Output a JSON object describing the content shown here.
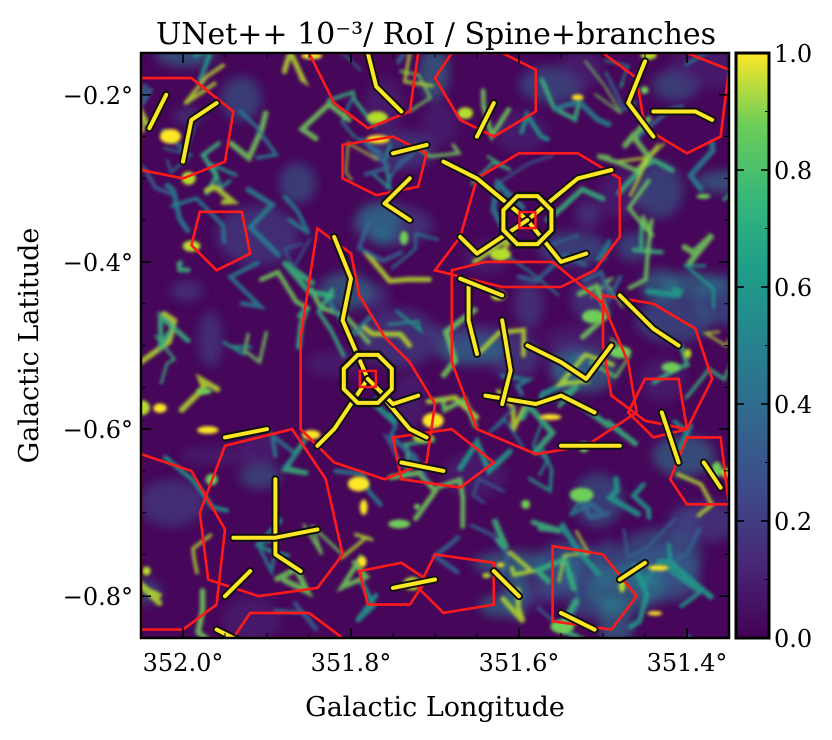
{
  "chart_data": {
    "type": "heatmap",
    "title": "UNet++ 10⁻³/ RoI / Spine+branches",
    "xlabel": "Galactic Longitude",
    "ylabel": "Galactic Latitude",
    "xlim": [
      352.05,
      351.35
    ],
    "ylim": [
      -0.85,
      -0.15
    ],
    "x_ticks": [
      {
        "value": 352.0,
        "label": "352.0°"
      },
      {
        "value": 351.8,
        "label": "351.8°"
      },
      {
        "value": 351.6,
        "label": "351.6°"
      },
      {
        "value": 351.4,
        "label": "351.4°"
      }
    ],
    "y_ticks": [
      {
        "value": -0.2,
        "label": "−0.2°"
      },
      {
        "value": -0.4,
        "label": "−0.4°"
      },
      {
        "value": -0.6,
        "label": "−0.6°"
      },
      {
        "value": -0.8,
        "label": "−0.8°"
      }
    ],
    "colorbar": {
      "cmap": "viridis",
      "range": [
        0.0,
        1.0
      ],
      "ticks": [
        {
          "value": 0.0,
          "label": "0.0"
        },
        {
          "value": 0.2,
          "label": "0.2"
        },
        {
          "value": 0.4,
          "label": "0.4"
        },
        {
          "value": 0.6,
          "label": "0.6"
        },
        {
          "value": 0.8,
          "label": "0.8"
        },
        {
          "value": 1.0,
          "label": "1.0"
        }
      ]
    },
    "overlay_colors": {
      "roi_contours": "#ff1a1a",
      "spine_outline": "#111111",
      "spine_fill": "#fde725"
    },
    "hubs": [
      {
        "l": 351.59,
        "b": -0.35
      },
      {
        "l": 351.78,
        "b": -0.54
      }
    ],
    "spines": [
      [
        [
          351.59,
          -0.35
        ],
        [
          351.65,
          -0.3
        ],
        [
          351.69,
          -0.28
        ]
      ],
      [
        [
          351.59,
          -0.35
        ],
        [
          351.53,
          -0.3
        ],
        [
          351.49,
          -0.29
        ]
      ],
      [
        [
          351.59,
          -0.35
        ],
        [
          351.55,
          -0.4
        ],
        [
          351.52,
          -0.39
        ]
      ],
      [
        [
          351.59,
          -0.35
        ],
        [
          351.65,
          -0.39
        ],
        [
          351.67,
          -0.37
        ]
      ],
      [
        [
          351.78,
          -0.54
        ],
        [
          351.81,
          -0.47
        ],
        [
          351.8,
          -0.42
        ],
        [
          351.82,
          -0.37
        ]
      ],
      [
        [
          351.78,
          -0.54
        ],
        [
          351.73,
          -0.6
        ],
        [
          351.71,
          -0.61
        ]
      ],
      [
        [
          351.78,
          -0.54
        ],
        [
          351.82,
          -0.6
        ],
        [
          351.84,
          -0.62
        ]
      ],
      [
        [
          351.78,
          -0.54
        ],
        [
          351.75,
          -0.57
        ],
        [
          351.72,
          -0.56
        ]
      ],
      [
        [
          351.89,
          -0.66
        ],
        [
          351.89,
          -0.75
        ],
        [
          351.86,
          -0.77
        ]
      ],
      [
        [
          351.94,
          -0.73
        ],
        [
          351.89,
          -0.73
        ],
        [
          351.84,
          -0.72
        ]
      ],
      [
        [
          351.59,
          -0.5
        ],
        [
          351.55,
          -0.52
        ],
        [
          351.52,
          -0.54
        ],
        [
          351.49,
          -0.5
        ]
      ],
      [
        [
          351.64,
          -0.56
        ],
        [
          351.58,
          -0.57
        ],
        [
          351.55,
          -0.56
        ],
        [
          351.51,
          -0.58
        ]
      ],
      [
        [
          351.48,
          -0.44
        ],
        [
          351.44,
          -0.48
        ],
        [
          351.41,
          -0.5
        ]
      ],
      [
        [
          351.45,
          -0.16
        ],
        [
          351.47,
          -0.21
        ],
        [
          351.44,
          -0.25
        ]
      ],
      [
        [
          351.44,
          -0.22
        ],
        [
          351.39,
          -0.22
        ],
        [
          351.37,
          -0.23
        ]
      ],
      [
        [
          351.78,
          -0.15
        ],
        [
          351.77,
          -0.19
        ],
        [
          351.74,
          -0.22
        ]
      ],
      [
        [
          352.0,
          -0.28
        ],
        [
          351.99,
          -0.23
        ],
        [
          351.96,
          -0.21
        ]
      ],
      [
        [
          351.73,
          -0.35
        ],
        [
          351.76,
          -0.33
        ],
        [
          351.73,
          -0.3
        ]
      ],
      [
        [
          351.66,
          -0.43
        ],
        [
          351.66,
          -0.47
        ],
        [
          351.65,
          -0.51
        ]
      ],
      [
        [
          351.62,
          -0.47
        ],
        [
          351.61,
          -0.53
        ],
        [
          351.62,
          -0.57
        ]
      ],
      [
        [
          351.63,
          -0.21
        ],
        [
          351.65,
          -0.25
        ]
      ],
      [
        [
          351.43,
          -0.58
        ],
        [
          351.41,
          -0.64
        ]
      ],
      [
        [
          351.38,
          -0.64
        ],
        [
          351.36,
          -0.67
        ]
      ],
      [
        [
          351.95,
          -0.61
        ],
        [
          351.9,
          -0.6
        ]
      ],
      [
        [
          351.55,
          -0.62
        ],
        [
          351.48,
          -0.62
        ]
      ],
      [
        [
          351.74,
          -0.64
        ],
        [
          351.69,
          -0.65
        ]
      ],
      [
        [
          351.6,
          -0.8
        ],
        [
          351.63,
          -0.77
        ]
      ],
      [
        [
          351.48,
          -0.78
        ],
        [
          351.45,
          -0.76
        ]
      ],
      [
        [
          351.75,
          -0.79
        ],
        [
          351.7,
          -0.78
        ]
      ],
      [
        [
          351.55,
          -0.82
        ],
        [
          351.51,
          -0.84
        ]
      ],
      [
        [
          351.96,
          -0.84
        ],
        [
          351.92,
          -0.86
        ]
      ],
      [
        [
          351.75,
          -0.27
        ],
        [
          351.71,
          -0.26
        ]
      ],
      [
        [
          352.04,
          -0.24
        ],
        [
          352.02,
          -0.2
        ]
      ],
      [
        [
          351.67,
          -0.42
        ],
        [
          351.62,
          -0.44
        ]
      ],
      [
        [
          351.92,
          -0.77
        ],
        [
          351.95,
          -0.8
        ]
      ]
    ],
    "roi_regions": [
      [
        [
          351.7,
          -0.41
        ],
        [
          351.67,
          -0.37
        ],
        [
          351.65,
          -0.3
        ],
        [
          351.6,
          -0.27
        ],
        [
          351.53,
          -0.27
        ],
        [
          351.48,
          -0.3
        ],
        [
          351.48,
          -0.37
        ],
        [
          351.51,
          -0.41
        ],
        [
          351.55,
          -0.43
        ],
        [
          351.62,
          -0.43
        ]
      ],
      [
        [
          351.84,
          -0.36
        ],
        [
          351.8,
          -0.39
        ],
        [
          351.79,
          -0.44
        ],
        [
          351.76,
          -0.49
        ],
        [
          351.73,
          -0.52
        ],
        [
          351.7,
          -0.57
        ],
        [
          351.71,
          -0.64
        ],
        [
          351.76,
          -0.66
        ],
        [
          351.82,
          -0.64
        ],
        [
          351.86,
          -0.6
        ],
        [
          351.86,
          -0.49
        ]
      ],
      [
        [
          351.68,
          -0.41
        ],
        [
          351.64,
          -0.4
        ],
        [
          351.56,
          -0.4
        ],
        [
          351.5,
          -0.45
        ],
        [
          351.47,
          -0.52
        ],
        [
          351.46,
          -0.58
        ],
        [
          351.52,
          -0.62
        ],
        [
          351.58,
          -0.63
        ],
        [
          351.65,
          -0.6
        ],
        [
          351.68,
          -0.52
        ]
      ],
      [
        [
          351.95,
          -0.62
        ],
        [
          351.87,
          -0.6
        ],
        [
          351.83,
          -0.66
        ],
        [
          351.81,
          -0.75
        ],
        [
          351.84,
          -0.79
        ],
        [
          351.91,
          -0.8
        ],
        [
          351.97,
          -0.78
        ],
        [
          351.98,
          -0.7
        ]
      ],
      [
        [
          352.05,
          -0.63
        ],
        [
          351.99,
          -0.65
        ],
        [
          351.95,
          -0.72
        ],
        [
          351.96,
          -0.81
        ],
        [
          352.0,
          -0.84
        ],
        [
          352.05,
          -0.84
        ]
      ],
      [
        [
          351.5,
          -0.44
        ],
        [
          351.44,
          -0.45
        ],
        [
          351.39,
          -0.48
        ],
        [
          351.37,
          -0.54
        ],
        [
          351.4,
          -0.6
        ],
        [
          351.45,
          -0.59
        ],
        [
          351.49,
          -0.56
        ],
        [
          351.5,
          -0.5
        ]
      ],
      [
        [
          351.7,
          -0.18
        ],
        [
          351.67,
          -0.23
        ],
        [
          351.63,
          -0.25
        ],
        [
          351.58,
          -0.22
        ],
        [
          351.58,
          -0.17
        ],
        [
          351.62,
          -0.15
        ],
        [
          351.68,
          -0.15
        ]
      ],
      [
        [
          351.5,
          -0.15
        ],
        [
          351.46,
          -0.18
        ],
        [
          351.45,
          -0.24
        ],
        [
          351.4,
          -0.27
        ],
        [
          351.36,
          -0.25
        ],
        [
          351.35,
          -0.17
        ],
        [
          351.4,
          -0.15
        ]
      ],
      [
        [
          351.85,
          -0.15
        ],
        [
          351.82,
          -0.21
        ],
        [
          351.78,
          -0.24
        ],
        [
          351.73,
          -0.22
        ],
        [
          351.72,
          -0.15
        ]
      ],
      [
        [
          352.05,
          -0.18
        ],
        [
          351.99,
          -0.18
        ],
        [
          351.94,
          -0.22
        ],
        [
          351.95,
          -0.28
        ],
        [
          352.0,
          -0.3
        ],
        [
          352.05,
          -0.29
        ]
      ],
      [
        [
          351.81,
          -0.26
        ],
        [
          351.75,
          -0.25
        ],
        [
          351.71,
          -0.27
        ],
        [
          351.72,
          -0.31
        ],
        [
          351.77,
          -0.32
        ],
        [
          351.81,
          -0.3
        ]
      ],
      [
        [
          351.98,
          -0.34
        ],
        [
          351.93,
          -0.34
        ],
        [
          351.92,
          -0.39
        ],
        [
          351.96,
          -0.41
        ],
        [
          351.99,
          -0.38
        ]
      ],
      [
        [
          351.56,
          -0.74
        ],
        [
          351.5,
          -0.75
        ],
        [
          351.46,
          -0.8
        ],
        [
          351.49,
          -0.84
        ],
        [
          351.56,
          -0.83
        ]
      ],
      [
        [
          351.7,
          -0.75
        ],
        [
          351.63,
          -0.76
        ],
        [
          351.63,
          -0.81
        ],
        [
          351.69,
          -0.82
        ],
        [
          351.72,
          -0.79
        ]
      ],
      [
        [
          351.79,
          -0.77
        ],
        [
          351.74,
          -0.76
        ],
        [
          351.71,
          -0.78
        ],
        [
          351.73,
          -0.81
        ],
        [
          351.78,
          -0.81
        ]
      ],
      [
        [
          351.92,
          -0.82
        ],
        [
          351.85,
          -0.82
        ],
        [
          351.81,
          -0.85
        ],
        [
          351.94,
          -0.85
        ]
      ],
      [
        [
          351.4,
          -0.61
        ],
        [
          351.36,
          -0.61
        ],
        [
          351.35,
          -0.69
        ],
        [
          351.4,
          -0.69
        ],
        [
          351.42,
          -0.66
        ]
      ],
      [
        [
          351.75,
          -0.61
        ],
        [
          351.68,
          -0.6
        ],
        [
          351.63,
          -0.64
        ],
        [
          351.67,
          -0.67
        ],
        [
          351.74,
          -0.66
        ]
      ],
      [
        [
          351.45,
          -0.54
        ],
        [
          351.41,
          -0.54
        ],
        [
          351.4,
          -0.6
        ],
        [
          351.44,
          -0.61
        ],
        [
          351.47,
          -0.58
        ]
      ]
    ]
  }
}
